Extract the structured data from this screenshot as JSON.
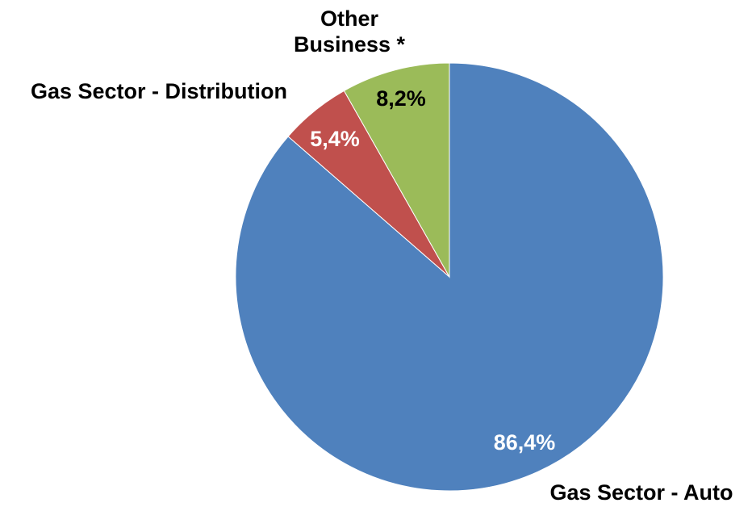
{
  "chart_data": {
    "type": "pie",
    "categories": [
      "Gas Sector - Auto",
      "Gas Sector - Distribution",
      "Other Business *"
    ],
    "values": [
      86.4,
      5.4,
      8.2
    ],
    "value_labels": [
      "86,4%",
      "5,4%",
      "8,2%"
    ],
    "colors": [
      "#4f81bd",
      "#c0504d",
      "#9bbb59"
    ]
  }
}
